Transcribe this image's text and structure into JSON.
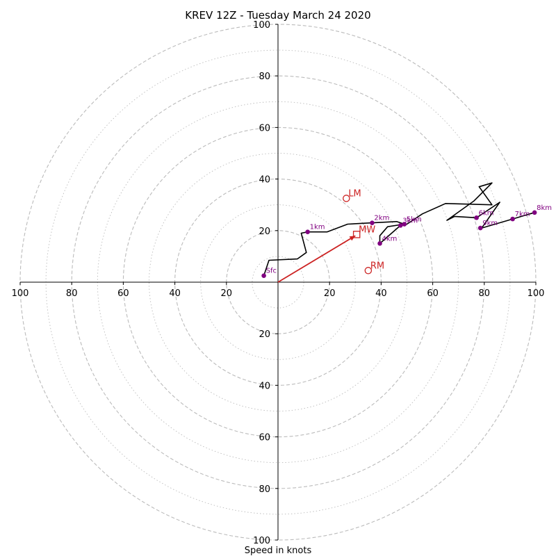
{
  "chart_data": {
    "type": "hodograph",
    "title": "KREV 12Z - Tuesday March 24 2020",
    "xlabel": "Speed in knots",
    "range": [
      -100,
      100
    ],
    "tick_values": [
      20,
      40,
      60,
      80,
      100
    ],
    "grid": true,
    "colors": {
      "trace": "#000000",
      "heights": "#800080",
      "motion": "#cc2222",
      "grid": "#bbbbbb"
    },
    "trace": [
      [
        -5.5,
        2.5
      ],
      [
        -3.5,
        8.5
      ],
      [
        7.5,
        9.0
      ],
      [
        11,
        11.5
      ],
      [
        9,
        19
      ],
      [
        11.5,
        19.5
      ],
      [
        19,
        19.5
      ],
      [
        27,
        22.5
      ],
      [
        36,
        23.0
      ],
      [
        46,
        23.5
      ],
      [
        49,
        22.5
      ],
      [
        42.5,
        21.5
      ],
      [
        39.5,
        18
      ],
      [
        39.5,
        15
      ],
      [
        47.5,
        22
      ],
      [
        50,
        22.5
      ],
      [
        56,
        26.5
      ],
      [
        65,
        30.5
      ],
      [
        83,
        30
      ],
      [
        78,
        37
      ],
      [
        83,
        38.5
      ],
      [
        76,
        31.5
      ],
      [
        65.5,
        24
      ],
      [
        68.5,
        25.5
      ],
      [
        77,
        25
      ],
      [
        86,
        31
      ],
      [
        79,
        21
      ],
      [
        91,
        24.5
      ],
      [
        99.5,
        27
      ]
    ],
    "height_markers": [
      {
        "label": "Sfc",
        "u": -5.5,
        "v": 2.5
      },
      {
        "label": "1km",
        "u": 11.5,
        "v": 19.5
      },
      {
        "label": "2km",
        "u": 36.5,
        "v": 23.0
      },
      {
        "label": "3km",
        "u": 47.5,
        "v": 22.0
      },
      {
        "label": "4km",
        "u": 39.5,
        "v": 15.0
      },
      {
        "label": "5km",
        "u": 49.0,
        "v": 22.5
      },
      {
        "label": "6km",
        "u": 77.0,
        "v": 25.0
      },
      {
        "label": "7km",
        "u": 91.0,
        "v": 24.5
      },
      {
        "label": "8km",
        "u": 99.5,
        "v": 27.0
      },
      {
        "label": "9km",
        "u": 78.5,
        "v": 21.0
      }
    ],
    "storm_motion": {
      "LM": {
        "label": "LM",
        "u": 26.5,
        "v": 32.5
      },
      "RM": {
        "label": "RM",
        "u": 35.0,
        "v": 4.5
      },
      "MW": {
        "label": "MW",
        "u": 30.5,
        "v": 18.5
      },
      "arrow": {
        "from": [
          0,
          0
        ],
        "to": [
          30,
          18
        ]
      }
    }
  }
}
